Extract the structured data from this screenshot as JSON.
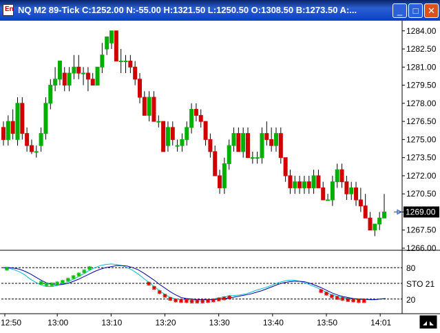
{
  "window": {
    "title": "NQ M2 89-Tick C:1252.00 N:-55.00 H:1321.50 L:1250.50 O:1308.50 B:1273.50 A:...",
    "icon_glyph": "En",
    "minimize_glyph": "_",
    "maximize_glyph": "□",
    "close_glyph": "✕"
  },
  "chart_data": [
    {
      "type": "candlestick",
      "price_axis_labels": [
        "1284.00",
        "1282.50",
        "1281.00",
        "1279.50",
        "1278.00",
        "1276.50",
        "1275.00",
        "1273.50",
        "1272.00",
        "1270.50",
        "1269.00",
        "1267.50",
        "1266.00"
      ],
      "ylim": [
        1266.0,
        1284.5
      ],
      "last_price_label": "1269.00",
      "up_color": "#00b000",
      "down_color": "#d00000",
      "candles": [
        [
          1276.0,
          1276.5,
          1274.5,
          1275.0
        ],
        [
          1275.0,
          1277.0,
          1274.5,
          1276.5
        ],
        [
          1276.5,
          1277.5,
          1275.0,
          1275.5
        ],
        [
          1275.0,
          1278.5,
          1274.5,
          1278.0
        ],
        [
          1278.0,
          1278.5,
          1275.0,
          1275.5
        ],
        [
          1275.5,
          1276.0,
          1274.0,
          1274.5
        ],
        [
          1274.5,
          1275.0,
          1273.8,
          1274.0
        ],
        [
          1274.0,
          1274.5,
          1273.5,
          1274.0
        ],
        [
          1274.5,
          1276.0,
          1274.0,
          1275.5
        ],
        [
          1275.5,
          1278.5,
          1275.0,
          1278.0
        ],
        [
          1278.0,
          1280.0,
          1277.5,
          1279.5
        ],
        [
          1279.5,
          1281.0,
          1279.0,
          1280.0
        ],
        [
          1280.0,
          1281.5,
          1279.5,
          1281.5
        ],
        [
          1280.5,
          1281.0,
          1279.0,
          1279.5
        ],
        [
          1279.5,
          1281.0,
          1279.0,
          1280.5
        ],
        [
          1280.5,
          1282.0,
          1280.0,
          1281.0
        ],
        [
          1281.0,
          1282.0,
          1280.0,
          1280.5
        ],
        [
          1280.5,
          1281.0,
          1279.5,
          1280.5
        ],
        [
          1280.5,
          1281.0,
          1279.0,
          1280.0
        ],
        [
          1280.0,
          1280.5,
          1279.5,
          1279.5
        ],
        [
          1279.5,
          1281.0,
          1279.5,
          1281.0
        ],
        [
          1281.0,
          1283.0,
          1280.5,
          1282.0
        ],
        [
          1282.5,
          1283.5,
          1282.0,
          1283.5
        ],
        [
          1283.0,
          1284.0,
          1282.5,
          1284.0
        ],
        [
          1284.0,
          1284.0,
          1281.5,
          1281.5
        ],
        [
          1281.5,
          1282.5,
          1280.5,
          1281.5
        ],
        [
          1281.5,
          1282.0,
          1280.5,
          1281.5
        ],
        [
          1281.5,
          1282.0,
          1280.5,
          1281.0
        ],
        [
          1281.0,
          1281.5,
          1279.5,
          1280.0
        ],
        [
          1280.0,
          1280.5,
          1278.0,
          1278.5
        ],
        [
          1278.5,
          1279.0,
          1277.0,
          1277.0
        ],
        [
          1277.0,
          1279.0,
          1276.5,
          1278.5
        ],
        [
          1278.5,
          1279.0,
          1276.5,
          1276.5
        ],
        [
          1276.5,
          1277.0,
          1276.0,
          1276.5
        ],
        [
          1276.5,
          1276.5,
          1274.0,
          1274.0
        ],
        [
          1274.5,
          1276.5,
          1274.0,
          1276.0
        ],
        [
          1276.0,
          1276.5,
          1274.5,
          1275.0
        ],
        [
          1274.5,
          1275.0,
          1274.0,
          1274.5
        ],
        [
          1274.5,
          1275.5,
          1274.0,
          1275.0
        ],
        [
          1275.0,
          1276.5,
          1274.5,
          1276.0
        ],
        [
          1276.0,
          1278.0,
          1275.5,
          1277.5
        ],
        [
          1277.5,
          1278.0,
          1276.5,
          1277.0
        ],
        [
          1277.0,
          1277.5,
          1276.0,
          1276.5
        ],
        [
          1276.5,
          1276.5,
          1274.5,
          1275.0
        ],
        [
          1275.0,
          1275.5,
          1273.5,
          1274.0
        ],
        [
          1274.0,
          1274.5,
          1272.0,
          1272.0
        ],
        [
          1272.0,
          1272.5,
          1270.5,
          1271.0
        ],
        [
          1271.0,
          1273.5,
          1270.5,
          1273.0
        ],
        [
          1273.0,
          1275.0,
          1272.5,
          1274.5
        ],
        [
          1274.5,
          1276.0,
          1274.0,
          1275.5
        ],
        [
          1275.5,
          1276.0,
          1274.0,
          1274.0
        ],
        [
          1274.0,
          1276.0,
          1273.5,
          1275.5
        ],
        [
          1275.5,
          1276.0,
          1273.5,
          1273.5
        ],
        [
          1273.5,
          1274.0,
          1273.0,
          1273.5
        ],
        [
          1273.5,
          1274.0,
          1273.0,
          1273.5
        ],
        [
          1273.5,
          1276.0,
          1273.0,
          1275.5
        ],
        [
          1275.5,
          1276.5,
          1274.5,
          1275.0
        ],
        [
          1275.0,
          1276.0,
          1274.0,
          1274.5
        ],
        [
          1274.5,
          1276.0,
          1274.0,
          1275.5
        ],
        [
          1275.5,
          1276.0,
          1273.0,
          1273.5
        ],
        [
          1273.5,
          1273.5,
          1271.5,
          1272.0
        ],
        [
          1272.0,
          1272.5,
          1270.5,
          1271.0
        ],
        [
          1271.0,
          1272.0,
          1270.5,
          1271.5
        ],
        [
          1271.5,
          1272.0,
          1270.5,
          1271.0
        ],
        [
          1271.0,
          1272.0,
          1270.5,
          1271.5
        ],
        [
          1271.5,
          1272.0,
          1270.5,
          1271.0
        ],
        [
          1271.0,
          1272.5,
          1270.5,
          1272.0
        ],
        [
          1272.0,
          1272.5,
          1271.0,
          1271.0
        ],
        [
          1271.0,
          1271.5,
          1270.0,
          1270.0
        ],
        [
          1270.0,
          1270.5,
          1270.0,
          1270.0
        ],
        [
          1270.0,
          1272.0,
          1269.5,
          1271.5
        ],
        [
          1271.5,
          1273.0,
          1271.0,
          1272.5
        ],
        [
          1272.5,
          1273.0,
          1271.0,
          1271.5
        ],
        [
          1271.5,
          1272.0,
          1270.0,
          1270.5
        ],
        [
          1270.5,
          1271.5,
          1270.0,
          1271.0
        ],
        [
          1271.0,
          1271.5,
          1269.5,
          1270.0
        ],
        [
          1270.0,
          1271.0,
          1269.0,
          1269.5
        ],
        [
          1269.5,
          1270.5,
          1268.5,
          1268.5
        ],
        [
          1268.5,
          1269.0,
          1267.5,
          1267.5
        ],
        [
          1267.5,
          1268.0,
          1267.0,
          1268.0
        ],
        [
          1268.0,
          1269.0,
          1267.5,
          1268.5
        ],
        [
          1268.5,
          1270.5,
          1268.5,
          1269.0
        ]
      ]
    },
    {
      "type": "line",
      "indicator_label": "STO 21",
      "levels": [
        80,
        50,
        20
      ],
      "level_labels": [
        "80",
        "20"
      ],
      "ylim": [
        0,
        100
      ],
      "lines": [
        {
          "color": "#00bcd4",
          "values": [
            80,
            79,
            76,
            72,
            66,
            58,
            52,
            47,
            44,
            44,
            46,
            49,
            53,
            58,
            63,
            69,
            75,
            80,
            84,
            86,
            87,
            86,
            84,
            80,
            75,
            68,
            60,
            52,
            44,
            36,
            29,
            23,
            20,
            19,
            19,
            18,
            18,
            18,
            19,
            20,
            22,
            24,
            26,
            27,
            28,
            30,
            33,
            37,
            40,
            43,
            47,
            51,
            54,
            56,
            56,
            54,
            51,
            47,
            43,
            38,
            33,
            28,
            25,
            23,
            21,
            20,
            19,
            19,
            19,
            19,
            20,
            21
          ]
        },
        {
          "color": "#0000a0",
          "values": [
            80,
            80,
            79,
            77,
            73,
            68,
            62,
            56,
            51,
            48,
            47,
            48,
            50,
            54,
            58,
            63,
            68,
            73,
            77,
            80,
            82,
            84,
            84,
            83,
            80,
            76,
            70,
            63,
            56,
            48,
            41,
            34,
            28,
            23,
            21,
            20,
            19,
            19,
            19,
            19,
            20,
            21,
            22,
            24,
            26,
            28,
            30,
            33,
            36,
            40,
            44,
            48,
            51,
            53,
            54,
            54,
            53,
            50,
            46,
            42,
            37,
            32,
            28,
            25,
            23,
            21,
            20,
            20,
            19,
            19,
            20,
            21
          ]
        }
      ],
      "overbought_markers": [
        7,
        8,
        9,
        10,
        11,
        12,
        13,
        14,
        15,
        16
      ],
      "oversold_markers": [
        27,
        28,
        29,
        30,
        31,
        32,
        33,
        34,
        35,
        36,
        37,
        38,
        39,
        40,
        41,
        42,
        59,
        60,
        61,
        62,
        63,
        64,
        65,
        66,
        67
      ],
      "marker_colors": {
        "overbought": "#00c000",
        "oversold": "#e00000"
      }
    }
  ],
  "time_axis": {
    "labels": [
      "12:50",
      "13:00",
      "13:10",
      "13:20",
      "13:30",
      "13:40",
      "13:50",
      "14:01"
    ],
    "positions": [
      0,
      10,
      20,
      30,
      40,
      50,
      60,
      70
    ]
  },
  "colors": {
    "axis_text": "#000000",
    "grid": "#000000",
    "price_tag_bg": "#000000",
    "price_tag_fg": "#ffffff",
    "price_marker": "#2040c0"
  }
}
